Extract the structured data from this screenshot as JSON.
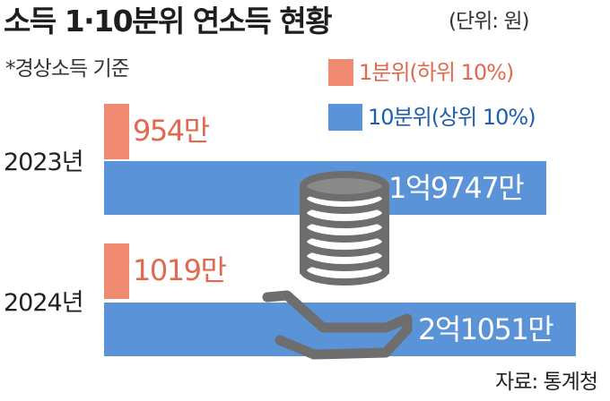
{
  "title": "소득 1·10분위 연소득 현황",
  "unit": "(단위: 원)",
  "note": "*경상소득 기준",
  "source": "자료: 통계청",
  "colors": {
    "low": "#f08a70",
    "high": "#5b93d8",
    "low_text": "#e0694e",
    "high_text": "#1f5fb0"
  },
  "chart_data": {
    "type": "bar",
    "orientation": "horizontal",
    "categories": [
      "2023년",
      "2024년"
    ],
    "series": [
      {
        "name": "1분위(하위 10%)",
        "values": [
          954,
          1019
        ],
        "labels": [
          "954만",
          "1019만"
        ]
      },
      {
        "name": "10분위(상위 10%)",
        "values": [
          19747,
          21051
        ],
        "labels": [
          "1억9747만",
          "2억1051만"
        ]
      }
    ],
    "value_unit": "만원",
    "legend": "top-right"
  }
}
